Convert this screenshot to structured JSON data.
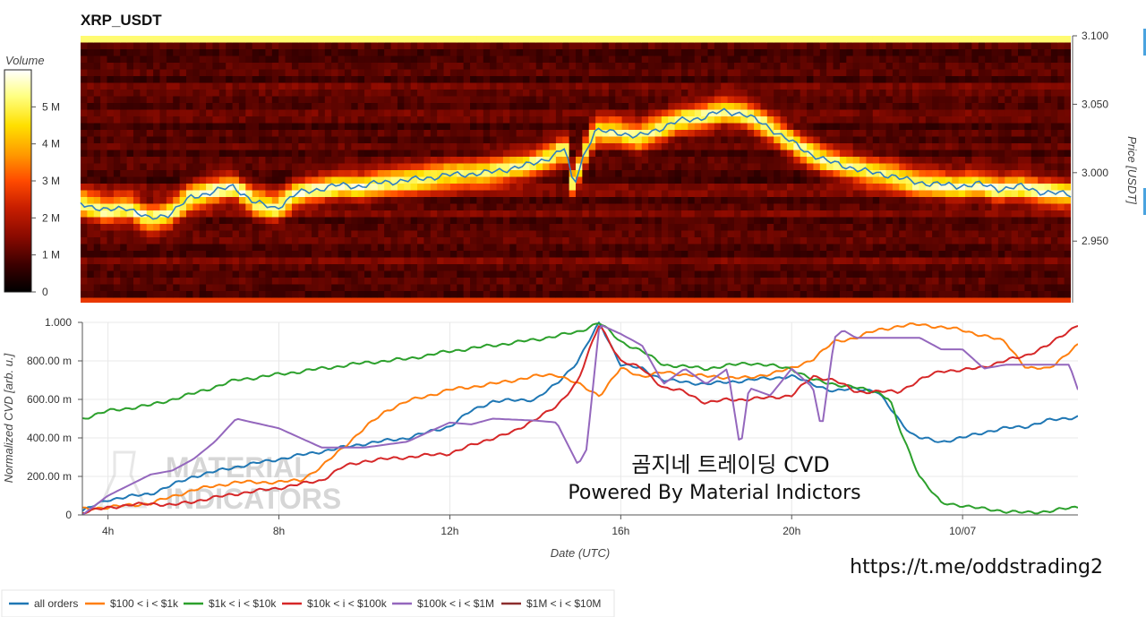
{
  "chart_data": [
    {
      "type": "heatmap",
      "title": "XRP_USDT",
      "ylabel": "Price [USDT]",
      "ylim": [
        2.905,
        3.1
      ],
      "yticks": [
        "3.100",
        "3.050",
        "3.000",
        "2.950"
      ],
      "ytick_values": [
        3.1,
        3.05,
        3.0,
        2.95
      ],
      "colorbar": {
        "label": "Volume",
        "ticks": [
          "0",
          "1 M",
          "2 M",
          "3 M",
          "4 M",
          "5 M"
        ],
        "tick_values": [
          0,
          1000000,
          2000000,
          3000000,
          4000000,
          5000000
        ],
        "range": [
          0,
          6000000
        ],
        "colors": [
          "#000000",
          "#3a0000",
          "#8a0a00",
          "#c81e00",
          "#ff4a00",
          "#ff9a00",
          "#ffe000",
          "#ffff80",
          "#ffffff"
        ]
      },
      "price_series": {
        "name": "price",
        "color": "#2f7fc1",
        "x": [
          3.4,
          4.0,
          4.5,
          5.0,
          5.5,
          6.0,
          6.5,
          7.0,
          7.5,
          8.0,
          8.5,
          9.0,
          9.5,
          10.0,
          10.5,
          11.0,
          11.5,
          12.0,
          12.5,
          13.0,
          13.5,
          14.0,
          14.5,
          14.8,
          15.0,
          15.2,
          15.5,
          16.0,
          16.5,
          17.0,
          17.5,
          18.0,
          18.5,
          19.0,
          19.5,
          20.0,
          20.5,
          21.0,
          21.5,
          22.0,
          22.5,
          23.0,
          23.5,
          24.0,
          24.5,
          25.0,
          25.5,
          26.0,
          26.7
        ],
        "y": [
          2.978,
          2.972,
          2.975,
          2.966,
          2.97,
          2.982,
          2.986,
          2.99,
          2.978,
          2.974,
          2.985,
          2.988,
          2.991,
          2.99,
          2.993,
          2.994,
          2.996,
          2.998,
          2.999,
          3.0,
          3.003,
          3.006,
          3.012,
          3.018,
          2.99,
          3.01,
          3.03,
          3.03,
          3.026,
          3.032,
          3.038,
          3.04,
          3.045,
          3.043,
          3.035,
          3.025,
          3.015,
          3.008,
          3.004,
          3.0,
          2.998,
          2.993,
          2.992,
          2.99,
          2.992,
          2.988,
          2.99,
          2.986,
          2.984
        ]
      }
    },
    {
      "type": "line",
      "xlabel": "Date (UTC)",
      "ylabel": "Normalized CVD [arb. u.]",
      "xlim": [
        3.4,
        26.7
      ],
      "ylim": [
        0,
        1000
      ],
      "xticks": [
        "4h",
        "8h",
        "12h",
        "16h",
        "20h",
        "10/07"
      ],
      "xtick_values": [
        4,
        8,
        12,
        16,
        20,
        24
      ],
      "yticks": [
        "0",
        "200.00 m",
        "400.00 m",
        "600.00 m",
        "800.00 m",
        "1.000"
      ],
      "ytick_values": [
        0,
        200,
        400,
        600,
        800,
        1000
      ],
      "series": [
        {
          "name": "all orders",
          "color": "#1f77b4",
          "x": [
            3.4,
            4.0,
            5.0,
            6.0,
            7.0,
            8.0,
            9.0,
            10.0,
            11.0,
            12.0,
            12.5,
            13.0,
            14.0,
            14.5,
            15.0,
            15.5,
            16.0,
            16.5,
            17.0,
            18.0,
            19.0,
            20.0,
            20.5,
            21.0,
            21.5,
            22.0,
            22.5,
            22.8,
            23.0,
            23.5,
            24.0,
            24.5,
            25.0,
            25.5,
            26.0,
            26.7
          ],
          "y": [
            20,
            80,
            110,
            200,
            250,
            290,
            330,
            370,
            400,
            460,
            540,
            590,
            600,
            680,
            800,
            1000,
            780,
            760,
            700,
            680,
            700,
            720,
            680,
            640,
            660,
            640,
            500,
            420,
            400,
            380,
            400,
            430,
            450,
            460,
            490,
            510
          ]
        },
        {
          "name": "$100 < i < $1k",
          "color": "#ff7f0e",
          "x": [
            3.4,
            4.0,
            5.0,
            6.0,
            7.0,
            8.0,
            8.5,
            9.0,
            9.5,
            10.0,
            10.5,
            11.0,
            12.0,
            13.0,
            14.0,
            14.5,
            15.0,
            15.5,
            16.0,
            16.5,
            17.0,
            18.0,
            19.0,
            20.0,
            20.5,
            21.0,
            21.5,
            22.0,
            22.5,
            23.0,
            24.0,
            25.0,
            25.5,
            26.0,
            26.7
          ],
          "y": [
            30,
            40,
            60,
            130,
            170,
            170,
            180,
            250,
            350,
            450,
            540,
            590,
            650,
            680,
            720,
            730,
            680,
            620,
            760,
            720,
            740,
            720,
            710,
            760,
            810,
            900,
            920,
            960,
            980,
            990,
            960,
            900,
            760,
            760,
            880
          ]
        },
        {
          "name": "$1k < i < $10k",
          "color": "#2ca02c",
          "x": [
            3.4,
            4.0,
            5.0,
            6.0,
            7.0,
            8.0,
            9.0,
            10.0,
            11.0,
            12.0,
            13.0,
            14.0,
            15.0,
            15.5,
            16.0,
            16.5,
            17.0,
            18.0,
            19.0,
            20.0,
            20.5,
            21.0,
            21.5,
            22.0,
            22.3,
            22.5,
            22.8,
            23.0,
            23.5,
            24.0,
            24.5,
            25.0,
            25.5,
            26.0,
            26.7
          ],
          "y": [
            500,
            540,
            570,
            630,
            700,
            730,
            760,
            790,
            810,
            850,
            880,
            910,
            950,
            1000,
            900,
            850,
            780,
            760,
            790,
            760,
            700,
            680,
            660,
            640,
            600,
            460,
            300,
            200,
            60,
            50,
            30,
            20,
            10,
            20,
            40
          ]
        },
        {
          "name": "$10k < i < $100k",
          "color": "#d62728",
          "x": [
            3.4,
            4.0,
            5.0,
            5.5,
            6.0,
            7.0,
            8.0,
            9.0,
            9.5,
            10.0,
            11.0,
            12.0,
            13.0,
            13.5,
            14.0,
            14.5,
            15.0,
            15.5,
            16.0,
            16.5,
            17.0,
            17.5,
            18.0,
            18.5,
            19.0,
            20.0,
            20.5,
            21.0,
            21.5,
            22.0,
            22.5,
            23.0,
            23.5,
            24.0,
            24.5,
            25.0,
            25.5,
            26.0,
            26.7
          ],
          "y": [
            10,
            40,
            60,
            50,
            70,
            110,
            140,
            180,
            250,
            280,
            300,
            320,
            400,
            430,
            500,
            560,
            700,
            990,
            800,
            760,
            660,
            640,
            580,
            600,
            600,
            620,
            720,
            700,
            640,
            640,
            640,
            700,
            750,
            750,
            770,
            800,
            830,
            880,
            990
          ]
        },
        {
          "name": "$100k < i < $1M",
          "color": "#9467bd",
          "x": [
            3.4,
            4.0,
            5.0,
            5.5,
            6.0,
            6.5,
            7.0,
            8.0,
            9.0,
            10.0,
            11.0,
            12.0,
            12.5,
            13.0,
            14.0,
            14.5,
            15.0,
            15.2,
            15.5,
            16.0,
            16.5,
            17.0,
            17.5,
            18.0,
            18.5,
            18.8,
            19.0,
            19.5,
            20.0,
            20.5,
            20.7,
            21.0,
            21.2,
            21.5,
            22.0,
            22.5,
            23.0,
            23.5,
            24.0,
            24.5,
            25.0,
            25.5,
            26.0,
            26.5,
            26.7
          ],
          "y": [
            0,
            100,
            210,
            230,
            290,
            380,
            500,
            450,
            350,
            350,
            380,
            480,
            470,
            500,
            490,
            480,
            260,
            340,
            990,
            940,
            880,
            680,
            760,
            680,
            760,
            340,
            660,
            620,
            760,
            660,
            440,
            920,
            960,
            920,
            920,
            920,
            920,
            860,
            860,
            760,
            780,
            780,
            780,
            780,
            650
          ]
        }
      ]
    }
  ],
  "legend": [
    {
      "name": "all orders",
      "color": "#1f77b4"
    },
    {
      "name": "$100 < i < $1k",
      "color": "#ff7f0e"
    },
    {
      "name": "$1k < i < $10k",
      "color": "#2ca02c"
    },
    {
      "name": "$10k < i < $100k",
      "color": "#d62728"
    },
    {
      "name": "$100k < i < $1M",
      "color": "#9467bd"
    },
    {
      "name": "$1M < i < $10M",
      "color": "#8c2d2d"
    }
  ],
  "overlay_text": {
    "line1": "곰지네 트레이딩 CVD",
    "line2": "Powered By Material Indictors"
  },
  "watermark": {
    "line1": "MATERIAL",
    "line2": "INDICATORS"
  },
  "url_text": "https://t.me/oddstrading2"
}
